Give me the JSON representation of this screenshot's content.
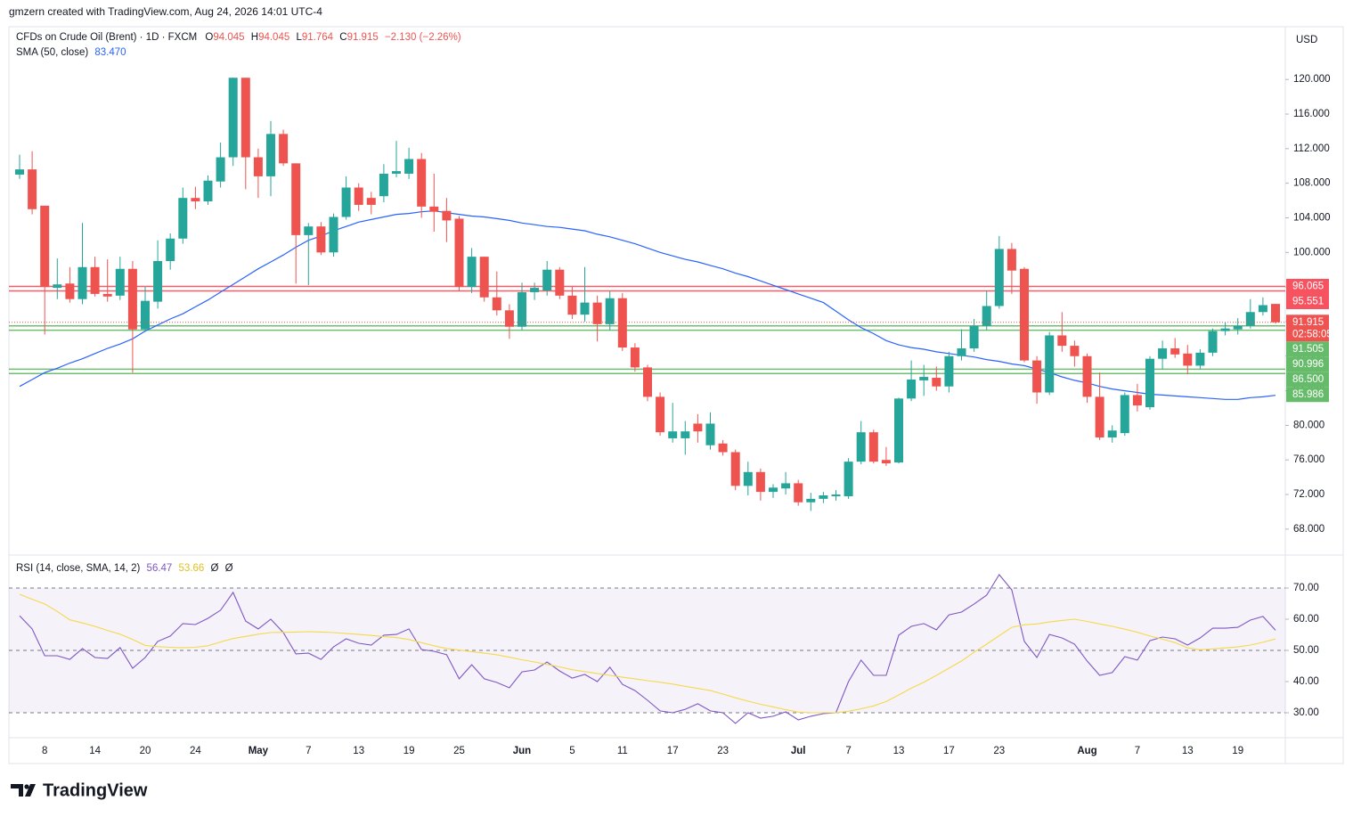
{
  "header": "gmzern created with TradingView.com, Aug 24, 2026 14:01 UTC-4",
  "logo": "TradingView",
  "chart_data": [
    {
      "type": "candlestick",
      "title": "CFDs on Crude Oil (Brent) · 1D · FXCM",
      "legend_keys": {
        "open": "O",
        "high": "H",
        "low": "L",
        "close": "C"
      },
      "change": "−2.130 (−2.26%)",
      "currency": "USD",
      "up_color": "#26a69a",
      "down_color": "#ef5350",
      "categories": [
        null,
        null,
        "8",
        null,
        null,
        null,
        "14",
        null,
        null,
        null,
        "20",
        null,
        null,
        null,
        "24",
        null,
        null,
        null,
        null,
        "May",
        null,
        null,
        null,
        "7",
        null,
        null,
        null,
        "13",
        null,
        null,
        null,
        "19",
        null,
        null,
        null,
        "25",
        null,
        null,
        null,
        null,
        "Jun",
        null,
        null,
        null,
        "5",
        null,
        null,
        null,
        "11",
        null,
        null,
        null,
        "17",
        null,
        null,
        null,
        "23",
        null,
        null,
        null,
        null,
        null,
        "Jul",
        null,
        null,
        null,
        "7",
        null,
        null,
        null,
        "13",
        null,
        null,
        null,
        "17",
        null,
        null,
        null,
        "23",
        null,
        null,
        null,
        null,
        null,
        null,
        "Aug",
        null,
        null,
        null,
        "7",
        null,
        null,
        null,
        "13",
        null,
        null,
        null,
        "19",
        null,
        null,
        null
      ],
      "open": [
        109.0,
        109.6,
        105.4,
        95.9,
        96.4,
        94.6,
        98.3,
        95.2,
        95.0,
        98.1,
        91.1,
        94.3,
        99.0,
        101.6,
        106.3,
        105.9,
        108.2,
        111.0,
        120.2,
        111.0,
        108.8,
        113.7,
        110.3,
        102.0,
        103.0,
        100.0,
        104.1,
        107.5,
        106.3,
        106.5,
        109.1,
        109.1,
        110.8,
        105.3,
        104.8,
        103.9,
        96.0,
        99.5,
        94.8,
        93.3,
        91.4,
        95.4,
        95.6,
        98.0,
        95.0,
        92.8,
        94.2,
        91.7,
        94.7,
        89.0,
        86.7,
        83.3,
        78.5,
        78.5,
        80.2,
        77.7,
        77.9,
        76.9,
        73.0,
        74.6,
        72.3,
        72.7,
        73.3,
        71.1,
        71.5,
        71.8,
        71.8,
        75.8,
        79.2,
        76.0,
        75.7,
        83.1,
        85.2,
        85.5,
        84.5,
        88.0,
        88.9,
        91.5,
        93.8,
        100.4,
        98.1,
        87.5,
        83.8,
        90.4,
        89.2,
        88.0,
        83.3,
        78.6,
        79.1,
        83.5,
        82.1,
        87.7,
        88.9,
        88.3,
        86.9,
        88.4,
        90.9,
        91.1,
        91.5,
        93.1,
        94.045
      ],
      "high": [
        111.3,
        111.7,
        105.4,
        99.3,
        98.3,
        103.4,
        99.5,
        99.2,
        99.5,
        99.0,
        96.0,
        101.4,
        102.2,
        107.5,
        107.6,
        108.9,
        112.7,
        120.2,
        120.2,
        112.0,
        115.2,
        114.2,
        110.3,
        103.4,
        103.5,
        104.5,
        108.8,
        108.0,
        107.0,
        110.2,
        112.9,
        112.1,
        111.5,
        109.1,
        106.3,
        104.2,
        100.5,
        99.5,
        97.8,
        94.0,
        96.5,
        96.5,
        99.0,
        98.3,
        96.0,
        98.3,
        95.0,
        95.5,
        95.3,
        89.5,
        87.0,
        83.8,
        82.6,
        80.5,
        81.3,
        81.5,
        78.3,
        77.2,
        75.8,
        75.0,
        73.2,
        74.6,
        73.7,
        72.2,
        72.3,
        72.5,
        76.2,
        80.5,
        79.5,
        77.5,
        83.2,
        87.5,
        87.0,
        86.8,
        88.5,
        91.1,
        92.3,
        95.6,
        101.9,
        101.1,
        98.3,
        88.0,
        90.8,
        93.1,
        89.8,
        88.3,
        86.1,
        80.0,
        83.8,
        84.8,
        88.0,
        89.8,
        90.1,
        89.3,
        88.8,
        91.2,
        91.9,
        92.4,
        94.6,
        94.8,
        94.045
      ],
      "low": [
        108.5,
        104.4,
        90.5,
        94.6,
        94.2,
        94.0,
        94.9,
        94.3,
        94.5,
        86.1,
        90.8,
        93.5,
        98.0,
        101.0,
        105.0,
        105.5,
        107.5,
        110.0,
        107.3,
        106.3,
        106.5,
        110.0,
        96.4,
        96.2,
        99.7,
        99.5,
        103.8,
        104.8,
        104.4,
        105.8,
        108.7,
        108.5,
        104.0,
        102.4,
        101.2,
        95.5,
        95.3,
        94.3,
        92.7,
        90.0,
        91.0,
        94.5,
        95.0,
        94.6,
        92.3,
        92.0,
        89.7,
        91.0,
        88.6,
        86.2,
        82.8,
        78.8,
        78.0,
        76.6,
        78.0,
        77.2,
        76.5,
        72.5,
        71.9,
        71.3,
        71.6,
        72.0,
        70.7,
        70.1,
        71.0,
        71.3,
        71.5,
        75.5,
        75.6,
        75.3,
        75.6,
        82.8,
        83.4,
        84.0,
        83.8,
        87.5,
        88.5,
        91.0,
        93.5,
        95.2,
        87.3,
        82.5,
        83.5,
        88.5,
        86.8,
        82.6,
        78.3,
        78.0,
        78.8,
        81.6,
        81.8,
        86.5,
        87.8,
        85.9,
        86.5,
        88.0,
        90.4,
        90.5,
        91.2,
        92.7,
        91.764
      ],
      "close": [
        109.6,
        105.0,
        96.0,
        96.3,
        94.6,
        98.3,
        95.2,
        94.9,
        98.1,
        91.1,
        94.4,
        99.0,
        101.6,
        106.3,
        105.9,
        108.3,
        111.0,
        120.2,
        111.0,
        108.8,
        113.7,
        110.3,
        102.0,
        103.0,
        100.0,
        104.1,
        107.5,
        105.5,
        105.5,
        109.1,
        109.4,
        110.8,
        105.3,
        104.7,
        103.7,
        96.0,
        99.5,
        94.8,
        93.3,
        91.4,
        95.4,
        95.9,
        98.0,
        95.0,
        92.8,
        94.2,
        91.7,
        94.7,
        89.0,
        86.7,
        83.3,
        79.2,
        79.3,
        79.3,
        79.3,
        80.2,
        76.9,
        73.0,
        74.6,
        72.3,
        72.8,
        73.3,
        71.1,
        71.5,
        71.9,
        72.0,
        75.8,
        79.2,
        75.8,
        75.6,
        83.1,
        85.3,
        85.6,
        84.5,
        88.0,
        88.9,
        91.5,
        93.8,
        100.4,
        97.9,
        87.5,
        83.8,
        90.4,
        89.2,
        88.0,
        83.3,
        78.6,
        79.4,
        83.5,
        82.3,
        87.7,
        88.9,
        88.2,
        86.9,
        88.4,
        90.9,
        91.2,
        91.5,
        93.1,
        93.9,
        91.915
      ],
      "countdown": "02:58:05",
      "sma": {
        "name": "SMA (50, close)",
        "color": "#2962ff",
        "legend_value": {
          "value": 83.47,
          "label": "83.470"
        },
        "values": [
          84.5,
          85.3,
          86.1,
          86.6,
          87.2,
          87.7,
          88.3,
          88.9,
          89.4,
          90.0,
          90.9,
          91.6,
          92.3,
          92.9,
          93.7,
          94.5,
          95.4,
          96.3,
          97.2,
          98.1,
          98.9,
          99.7,
          100.6,
          101.4,
          101.9,
          102.5,
          103.0,
          103.5,
          103.8,
          104.1,
          104.4,
          104.5,
          104.7,
          104.8,
          104.6,
          104.4,
          104.2,
          104.1,
          103.9,
          103.7,
          103.4,
          103.2,
          103.0,
          102.9,
          102.7,
          102.5,
          102.1,
          101.8,
          101.4,
          101.0,
          100.5,
          100.0,
          99.6,
          99.2,
          98.9,
          98.5,
          98.1,
          97.6,
          97.2,
          96.7,
          96.2,
          95.7,
          95.2,
          94.7,
          94.2,
          93.2,
          92.2,
          91.3,
          90.6,
          89.8,
          89.3,
          89.0,
          88.8,
          88.5,
          88.3,
          88.1,
          87.9,
          87.6,
          87.4,
          87.1,
          86.9,
          86.5,
          86.1,
          85.6,
          85.2,
          84.9,
          84.5,
          84.2,
          84.0,
          83.8,
          83.6,
          83.5,
          83.4,
          83.3,
          83.2,
          83.1,
          83.0,
          83.0,
          83.2,
          83.3,
          83.47
        ]
      },
      "levels": [
        {
          "value": 96.065,
          "color": "#f23645"
        },
        {
          "value": 95.551,
          "color": "#f23645"
        },
        {
          "value": 91.505,
          "color": "#4caf50"
        },
        {
          "value": 90.996,
          "color": "#4caf50"
        },
        {
          "value": 86.5,
          "label": "86.500",
          "color": "#4caf50"
        },
        {
          "value": 85.986,
          "color": "#4caf50"
        }
      ],
      "ylim": [
        65.1,
        126.1
      ],
      "yticks": [
        {
          "value": 68,
          "label": "68.000"
        },
        {
          "value": 72,
          "label": "72.000"
        },
        {
          "value": 76,
          "label": "76.000"
        },
        {
          "value": 80,
          "label": "80.000"
        },
        {
          "value": 84,
          "label": "84.000"
        },
        {
          "value": 88,
          "label": "88.000"
        },
        {
          "value": 92,
          "label": "92.000"
        },
        {
          "value": 96,
          "label": "96.000"
        },
        {
          "value": 100,
          "label": "100.000"
        },
        {
          "value": 104,
          "label": "104.000"
        },
        {
          "value": 108,
          "label": "108.000"
        },
        {
          "value": 112,
          "label": "112.000"
        },
        {
          "value": 116,
          "label": "116.000"
        },
        {
          "value": 120,
          "label": "120.000"
        }
      ]
    },
    {
      "type": "line",
      "title": "RSI (14, close, SMA, 14, 2)",
      "extra_legend": [
        "Ø",
        "Ø"
      ],
      "series": [
        {
          "name": "RSI",
          "color": "#7e57c2",
          "values": [
            61.1,
            56.9,
            48.3,
            48.3,
            47.1,
            50.6,
            47.7,
            47.4,
            50.9,
            44.3,
            47.7,
            52.9,
            54.6,
            58.6,
            58.3,
            60.3,
            62.9,
            68.6,
            59.4,
            56.9,
            60.0,
            55.7,
            48.9,
            49.1,
            47.1,
            51.1,
            53.7,
            52.3,
            51.7,
            54.9,
            55.1,
            56.9,
            50.3,
            49.7,
            48.6,
            40.9,
            45.4,
            40.9,
            39.7,
            38.0,
            43.1,
            43.7,
            46.3,
            43.4,
            41.1,
            42.3,
            40.0,
            44.6,
            39.1,
            37.1,
            34.0,
            30.6,
            30.0,
            31.1,
            32.9,
            30.6,
            30.0,
            26.6,
            30.0,
            28.3,
            28.9,
            30.3,
            27.7,
            28.9,
            29.7,
            30.0,
            40.0,
            46.9,
            42.0,
            42.0,
            54.9,
            57.7,
            58.6,
            56.6,
            61.4,
            62.3,
            64.9,
            67.7,
            74.3,
            69.4,
            52.9,
            47.7,
            55.1,
            54.0,
            52.0,
            46.6,
            42.0,
            42.9,
            48.0,
            46.9,
            53.1,
            54.3,
            53.7,
            51.7,
            54.0,
            57.1,
            57.1,
            57.4,
            59.7,
            60.9,
            56.47
          ]
        },
        {
          "name": "RSI-based MA",
          "color": "#f5d949",
          "values": [
            68.0,
            66.4,
            64.9,
            62.5,
            59.8,
            58.8,
            57.7,
            56.4,
            55.2,
            53.5,
            51.6,
            51.2,
            51.0,
            50.9,
            51.0,
            51.5,
            52.7,
            53.8,
            54.5,
            55.2,
            55.7,
            55.8,
            55.9,
            56.0,
            55.9,
            55.7,
            55.4,
            55.1,
            54.8,
            54.4,
            54.1,
            53.5,
            52.5,
            51.5,
            50.6,
            50.1,
            49.6,
            49.1,
            48.6,
            47.8,
            47.0,
            46.3,
            45.5,
            44.7,
            43.8,
            43.2,
            42.6,
            42.0,
            41.4,
            40.9,
            40.3,
            39.8,
            39.2,
            38.5,
            37.8,
            37.1,
            36.0,
            34.8,
            33.7,
            32.7,
            31.9,
            31.0,
            30.2,
            30.0,
            30.0,
            30.0,
            30.5,
            31.3,
            32.2,
            33.6,
            35.7,
            37.9,
            39.8,
            42.0,
            44.3,
            46.6,
            49.4,
            52.0,
            54.7,
            57.4,
            58.2,
            58.5,
            59.1,
            59.6,
            60.0,
            59.3,
            58.5,
            57.7,
            56.8,
            55.8,
            54.6,
            53.6,
            52.5,
            50.8,
            50.2,
            50.5,
            50.8,
            51.1,
            51.7,
            52.6,
            53.66
          ]
        }
      ],
      "band": [
        30,
        50,
        70
      ],
      "band_color": "#7e57c2",
      "ylim": [
        22,
        80
      ],
      "yticks": [
        {
          "value": 30,
          "label": "30.00"
        },
        {
          "value": 40,
          "label": "40.00"
        },
        {
          "value": 50,
          "label": "50.00"
        },
        {
          "value": 60,
          "label": "60.00"
        },
        {
          "value": 70,
          "label": "70.00"
        }
      ]
    }
  ]
}
